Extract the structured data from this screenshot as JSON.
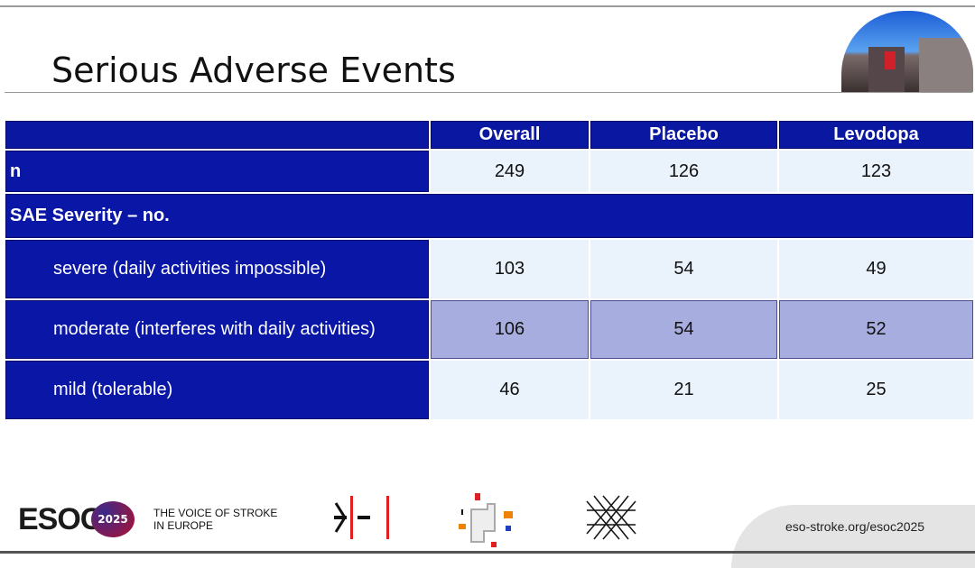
{
  "slide": {
    "title": "Serious Adverse Events"
  },
  "table": {
    "columns": [
      "",
      "Overall",
      "Placebo",
      "Levodopa"
    ],
    "n_row": {
      "label": "n",
      "values": [
        "249",
        "126",
        "123"
      ]
    },
    "section": {
      "label": "SAE Severity – no."
    },
    "rows": [
      {
        "label": "severe (daily activities impossible)",
        "values": [
          "103",
          "54",
          "49"
        ]
      },
      {
        "label": "moderate (interferes with daily activities)",
        "values": [
          "106",
          "54",
          "52"
        ]
      },
      {
        "label": "mild (tolerable)",
        "values": [
          "46",
          "21",
          "25"
        ]
      }
    ]
  },
  "footer": {
    "logo": "ESOC",
    "logo_year": "2025",
    "tagline_line1": "THE VOICE OF STROKE",
    "tagline_line2": "IN EUROPE",
    "url": "eso-stroke.org/esoc2025"
  },
  "colors": {
    "header_navy": "#0a17a0",
    "cell_light": "#eaf2fb",
    "highlight_row": "#a7addf",
    "accent_red": "#e02020"
  }
}
